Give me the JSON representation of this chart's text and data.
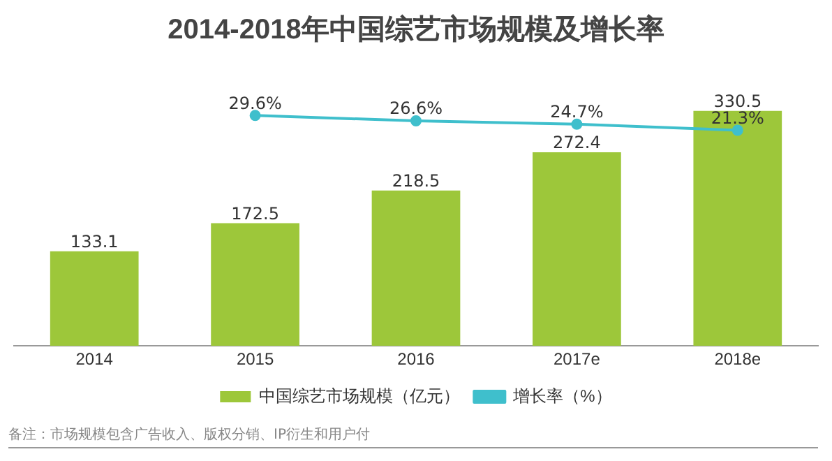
{
  "chart_data": {
    "type": "bar",
    "title": "2014-2018年中国综艺市场规模及增长率",
    "categories": [
      "2014",
      "2015",
      "2016",
      "2017e",
      "2018e"
    ],
    "series": [
      {
        "name": "中国综艺市场规模（亿元）",
        "type": "bar",
        "color": "#9dc73a",
        "values": [
          133.1,
          172.5,
          218.5,
          272.4,
          330.5
        ]
      },
      {
        "name": "增长率（%）",
        "type": "line",
        "axis": "y2",
        "color": "#3fbfcc",
        "marker": "circle",
        "values": [
          null,
          29.6,
          26.6,
          24.7,
          21.3
        ],
        "value_labels": [
          null,
          "29.6%",
          "26.6%",
          "24.7%",
          "21.3%"
        ]
      }
    ],
    "data_labels": true,
    "grid": false,
    "legend": "bottom",
    "tick_labels": "x",
    "annotations": [
      "备注：市场规模包含广告收入、版权分销、IP衍生和用户付"
    ]
  }
}
